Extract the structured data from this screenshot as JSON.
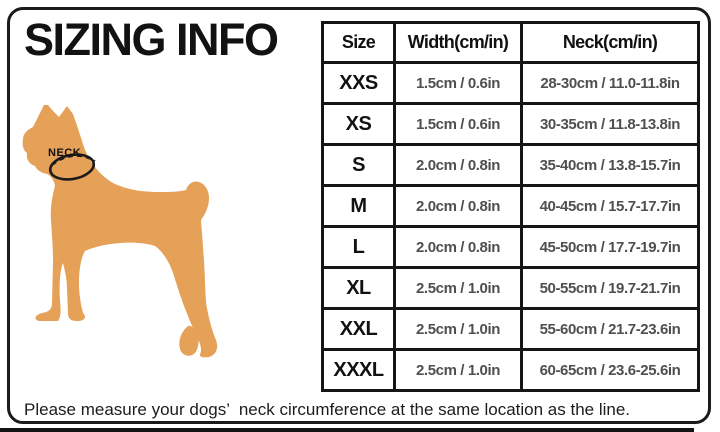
{
  "title": "SIZING INFO",
  "illustration": {
    "neck_label": "NECK",
    "dog_color": "#E6A159",
    "line_color": "#1b1b1b"
  },
  "table": {
    "headers": [
      "Size",
      "Width(cm/in)",
      "Neck(cm/in)"
    ],
    "rows": [
      {
        "size": "XXS",
        "width": "1.5cm / 0.6in",
        "neck": "28-30cm / 11.0-11.8in"
      },
      {
        "size": "XS",
        "width": "1.5cm / 0.6in",
        "neck": "30-35cm / 11.8-13.8in"
      },
      {
        "size": "S",
        "width": "2.0cm / 0.8in",
        "neck": "35-40cm / 13.8-15.7in"
      },
      {
        "size": "M",
        "width": "2.0cm / 0.8in",
        "neck": "40-45cm / 15.7-17.7in"
      },
      {
        "size": "L",
        "width": "2.0cm / 0.8in",
        "neck": "45-50cm / 17.7-19.7in"
      },
      {
        "size": "XL",
        "width": "2.5cm / 1.0in",
        "neck": "50-55cm / 19.7-21.7in"
      },
      {
        "size": "XXL",
        "width": "2.5cm / 1.0in",
        "neck": "55-60cm / 21.7-23.6in"
      },
      {
        "size": "XXXL",
        "width": "2.5cm / 1.0in",
        "neck": "60-65cm / 23.6-25.6in"
      }
    ]
  },
  "footer": {
    "note": "Please measure your dogs’  neck circumference at the same location as the line."
  },
  "colors": {
    "border": "#1b1b1b",
    "heading_text": "#111111",
    "data_text": "#4f4f4f"
  }
}
